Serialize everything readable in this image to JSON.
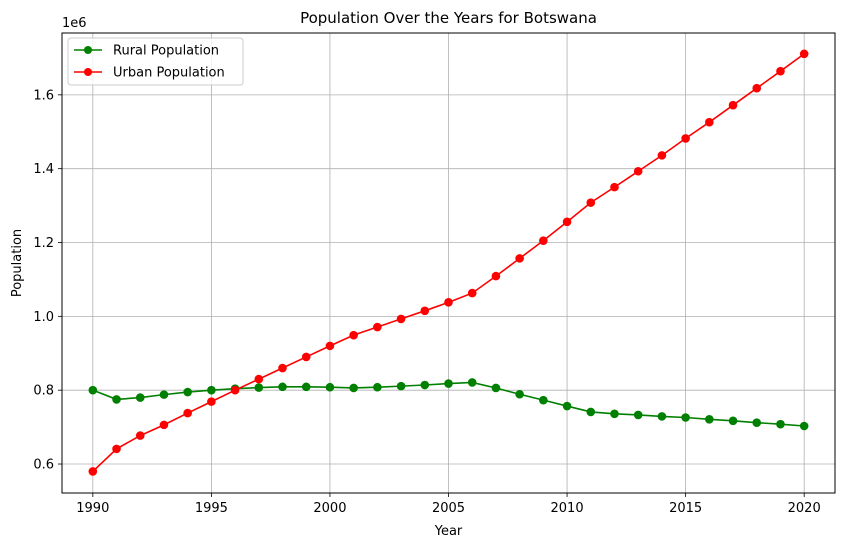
{
  "chart_data": {
    "type": "line",
    "title": "Population Over the Years for Botswana",
    "xlabel": "Year",
    "ylabel": "Population",
    "y_offset_label": "1e6",
    "xlim": [
      1988.7,
      2021.3
    ],
    "ylim": [
      0.5215,
      1.7675
    ],
    "y_scale": 1000000,
    "grid": true,
    "legend_position": "top-left",
    "x_ticks": [
      1990,
      1995,
      2000,
      2005,
      2010,
      2015,
      2020
    ],
    "x_tick_labels": [
      "1990",
      "1995",
      "2000",
      "2005",
      "2010",
      "2015",
      "2020"
    ],
    "y_ticks": [
      0.6,
      0.8,
      1.0,
      1.2,
      1.4,
      1.6
    ],
    "y_tick_labels": [
      "0.6",
      "0.8",
      "1.0",
      "1.2",
      "1.4",
      "1.6"
    ],
    "x": [
      1990,
      1991,
      1992,
      1993,
      1994,
      1995,
      1996,
      1997,
      1998,
      1999,
      2000,
      2001,
      2002,
      2003,
      2004,
      2005,
      2006,
      2007,
      2008,
      2009,
      2010,
      2011,
      2012,
      2013,
      2014,
      2015,
      2016,
      2017,
      2018,
      2019,
      2020
    ],
    "series": [
      {
        "name": "Rural Population",
        "color": "#008000",
        "values": [
          800000,
          775000,
          780000,
          788000,
          795000,
          800000,
          804000,
          807000,
          809000,
          809000,
          808000,
          806000,
          808000,
          811000,
          814000,
          818000,
          821000,
          806000,
          789000,
          773000,
          757000,
          741000,
          736000,
          733000,
          729000,
          726000,
          721000,
          717000,
          712000,
          708000,
          703000
        ]
      },
      {
        "name": "Urban Population",
        "color": "#ff0000",
        "values": [
          580000,
          641000,
          677000,
          706000,
          738000,
          769000,
          800000,
          830000,
          860000,
          890000,
          920000,
          949000,
          971000,
          993000,
          1015000,
          1038000,
          1063000,
          1109000,
          1157000,
          1205000,
          1256000,
          1308000,
          1350000,
          1393000,
          1436000,
          1482000,
          1526000,
          1572000,
          1618000,
          1664000,
          1711000
        ]
      }
    ]
  }
}
